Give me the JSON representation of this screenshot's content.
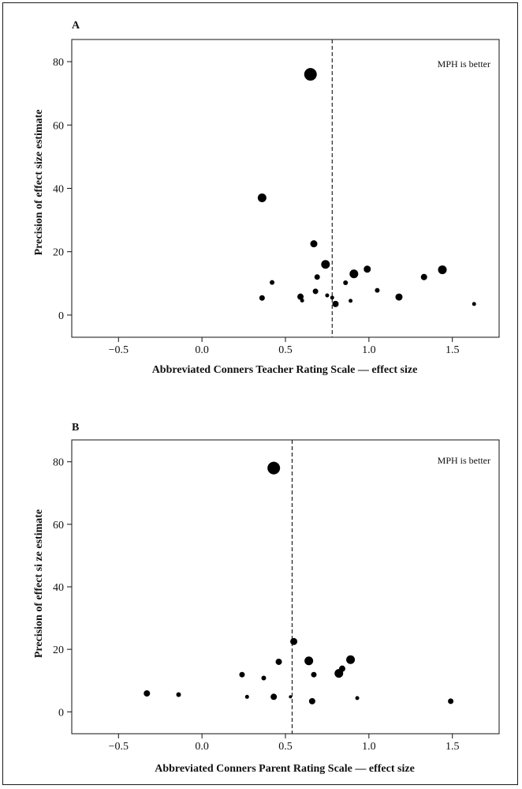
{
  "chart_data": [
    {
      "type": "scatter",
      "panel": "A",
      "title": "",
      "xlabel": "Abbreviated Conners Teacher Rating Scale — effect size",
      "ylabel": "Precision of effect size estimate",
      "annotation": "MPH is better",
      "xlim": [
        -0.78,
        1.78
      ],
      "ylim": [
        -7,
        87
      ],
      "xticks": [
        -0.5,
        0.0,
        0.5,
        1.0,
        1.5
      ],
      "xtick_labels": [
        "−0.5",
        "0.0",
        "0.5",
        "1.0",
        "1.5"
      ],
      "yticks": [
        0,
        20,
        40,
        60,
        80
      ],
      "ytick_labels": [
        "0",
        "20",
        "40",
        "60",
        "80"
      ],
      "reference_line_x": 0.78,
      "grid": false,
      "points": [
        {
          "x": 0.65,
          "y": 76,
          "size": 8
        },
        {
          "x": 0.36,
          "y": 37,
          "size": 5.5
        },
        {
          "x": 0.67,
          "y": 22.5,
          "size": 4.5
        },
        {
          "x": 0.74,
          "y": 16,
          "size": 5.5
        },
        {
          "x": 0.91,
          "y": 13,
          "size": 5.5
        },
        {
          "x": 0.99,
          "y": 14.5,
          "size": 4.5
        },
        {
          "x": 1.44,
          "y": 14.3,
          "size": 5.5
        },
        {
          "x": 1.33,
          "y": 12,
          "size": 4
        },
        {
          "x": 0.69,
          "y": 12,
          "size": 3.5
        },
        {
          "x": 0.42,
          "y": 10.3,
          "size": 3
        },
        {
          "x": 0.86,
          "y": 10.2,
          "size": 3
        },
        {
          "x": 1.05,
          "y": 7.8,
          "size": 3
        },
        {
          "x": 0.68,
          "y": 7.5,
          "size": 3.5
        },
        {
          "x": 0.75,
          "y": 6.2,
          "size": 2.5
        },
        {
          "x": 0.78,
          "y": 5.5,
          "size": 2.5
        },
        {
          "x": 0.59,
          "y": 5.8,
          "size": 4
        },
        {
          "x": 0.36,
          "y": 5.4,
          "size": 3.5
        },
        {
          "x": 0.6,
          "y": 4.6,
          "size": 2.5
        },
        {
          "x": 1.18,
          "y": 5.7,
          "size": 4.5
        },
        {
          "x": 0.89,
          "y": 4.5,
          "size": 2.5
        },
        {
          "x": 0.8,
          "y": 3.5,
          "size": 4
        },
        {
          "x": 1.63,
          "y": 3.5,
          "size": 2.5
        }
      ]
    },
    {
      "type": "scatter",
      "panel": "B",
      "title": "",
      "xlabel": "Abbreviated Conners Parent Rating Scale — effect size",
      "ylabel": "Precision of effect si ze estimate",
      "annotation": "MPH is better",
      "xlim": [
        -0.78,
        1.78
      ],
      "ylim": [
        -7,
        87
      ],
      "xticks": [
        -0.5,
        0.0,
        0.5,
        1.0,
        1.5
      ],
      "xtick_labels": [
        "−0.5",
        "0.0",
        "0.5",
        "1.0",
        "1.5"
      ],
      "yticks": [
        0,
        20,
        40,
        60,
        80
      ],
      "ytick_labels": [
        "0",
        "20",
        "40",
        "60",
        "80"
      ],
      "reference_line_x": 0.54,
      "grid": false,
      "points": [
        {
          "x": 0.43,
          "y": 78,
          "size": 8
        },
        {
          "x": 0.55,
          "y": 22.5,
          "size": 4.5
        },
        {
          "x": 0.64,
          "y": 16.3,
          "size": 5.5
        },
        {
          "x": 0.89,
          "y": 16.7,
          "size": 5.5
        },
        {
          "x": 0.46,
          "y": 16,
          "size": 4
        },
        {
          "x": 0.84,
          "y": 13.8,
          "size": 4
        },
        {
          "x": 0.82,
          "y": 12.3,
          "size": 5.5
        },
        {
          "x": 0.24,
          "y": 11.9,
          "size": 3.5
        },
        {
          "x": 0.67,
          "y": 11.9,
          "size": 3.5
        },
        {
          "x": 0.37,
          "y": 10.8,
          "size": 3
        },
        {
          "x": -0.33,
          "y": 5.9,
          "size": 4
        },
        {
          "x": -0.14,
          "y": 5.5,
          "size": 3
        },
        {
          "x": 0.27,
          "y": 4.8,
          "size": 2.5
        },
        {
          "x": 0.43,
          "y": 4.8,
          "size": 4
        },
        {
          "x": 0.53,
          "y": 4.8,
          "size": 2
        },
        {
          "x": 0.66,
          "y": 3.4,
          "size": 4
        },
        {
          "x": 0.93,
          "y": 4.4,
          "size": 2.5
        },
        {
          "x": 1.49,
          "y": 3.4,
          "size": 3.5
        }
      ]
    }
  ]
}
